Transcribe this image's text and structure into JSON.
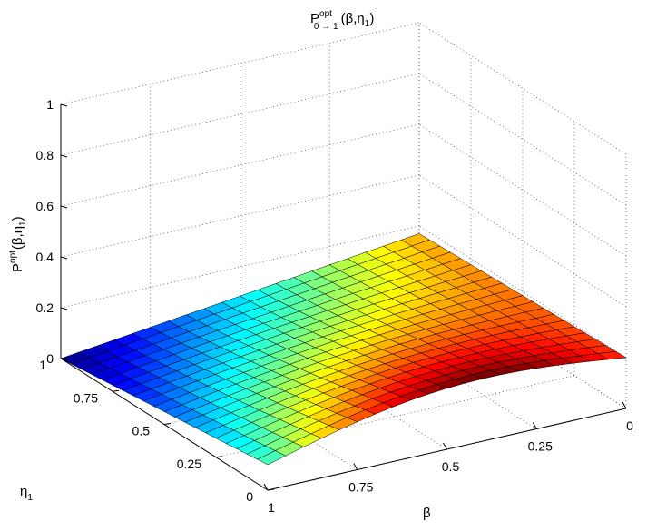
{
  "chart_data": {
    "type": "surface",
    "title": {
      "base": "P",
      "sup": "opt",
      "sub": "0 → 1",
      "args": "(β,η",
      "args_sub": "1",
      "close": ")"
    },
    "zlabel": {
      "base": "P",
      "sup": "opt",
      "args": "(β,η",
      "args_sub": "1",
      "close": ")"
    },
    "xlabel": "β",
    "ylabel": {
      "base": "η",
      "sub": "1"
    },
    "x_range": [
      0,
      1
    ],
    "y_range": [
      0,
      1
    ],
    "zlim": [
      0,
      1
    ],
    "colormap": "jet",
    "grid": true,
    "z_ticks": [
      "0",
      "0.2",
      "0.4",
      "0.6",
      "0.8",
      "1"
    ],
    "beta_ticks": [
      "1",
      "0.75",
      "0.5",
      "0.25",
      "0"
    ],
    "eta_ticks": [
      "0",
      "0.25",
      "0.5",
      "0.75",
      "1"
    ],
    "mesh_size": 20,
    "corner_values": [
      {
        "beta": 0,
        "eta1": 0,
        "z": 0.2
      },
      {
        "beta": 1,
        "eta1": 0,
        "z": 0.1
      },
      {
        "beta": 0,
        "eta1": 1,
        "z": 0.17
      },
      {
        "beta": 1,
        "eta1": 1,
        "z": 0.0
      }
    ],
    "ridge": {
      "beta": 0.3,
      "eta1": 0.0,
      "z": 0.3
    },
    "colors": {
      "axis": "#000000",
      "grid": "#555555",
      "edge": "#000000"
    }
  }
}
